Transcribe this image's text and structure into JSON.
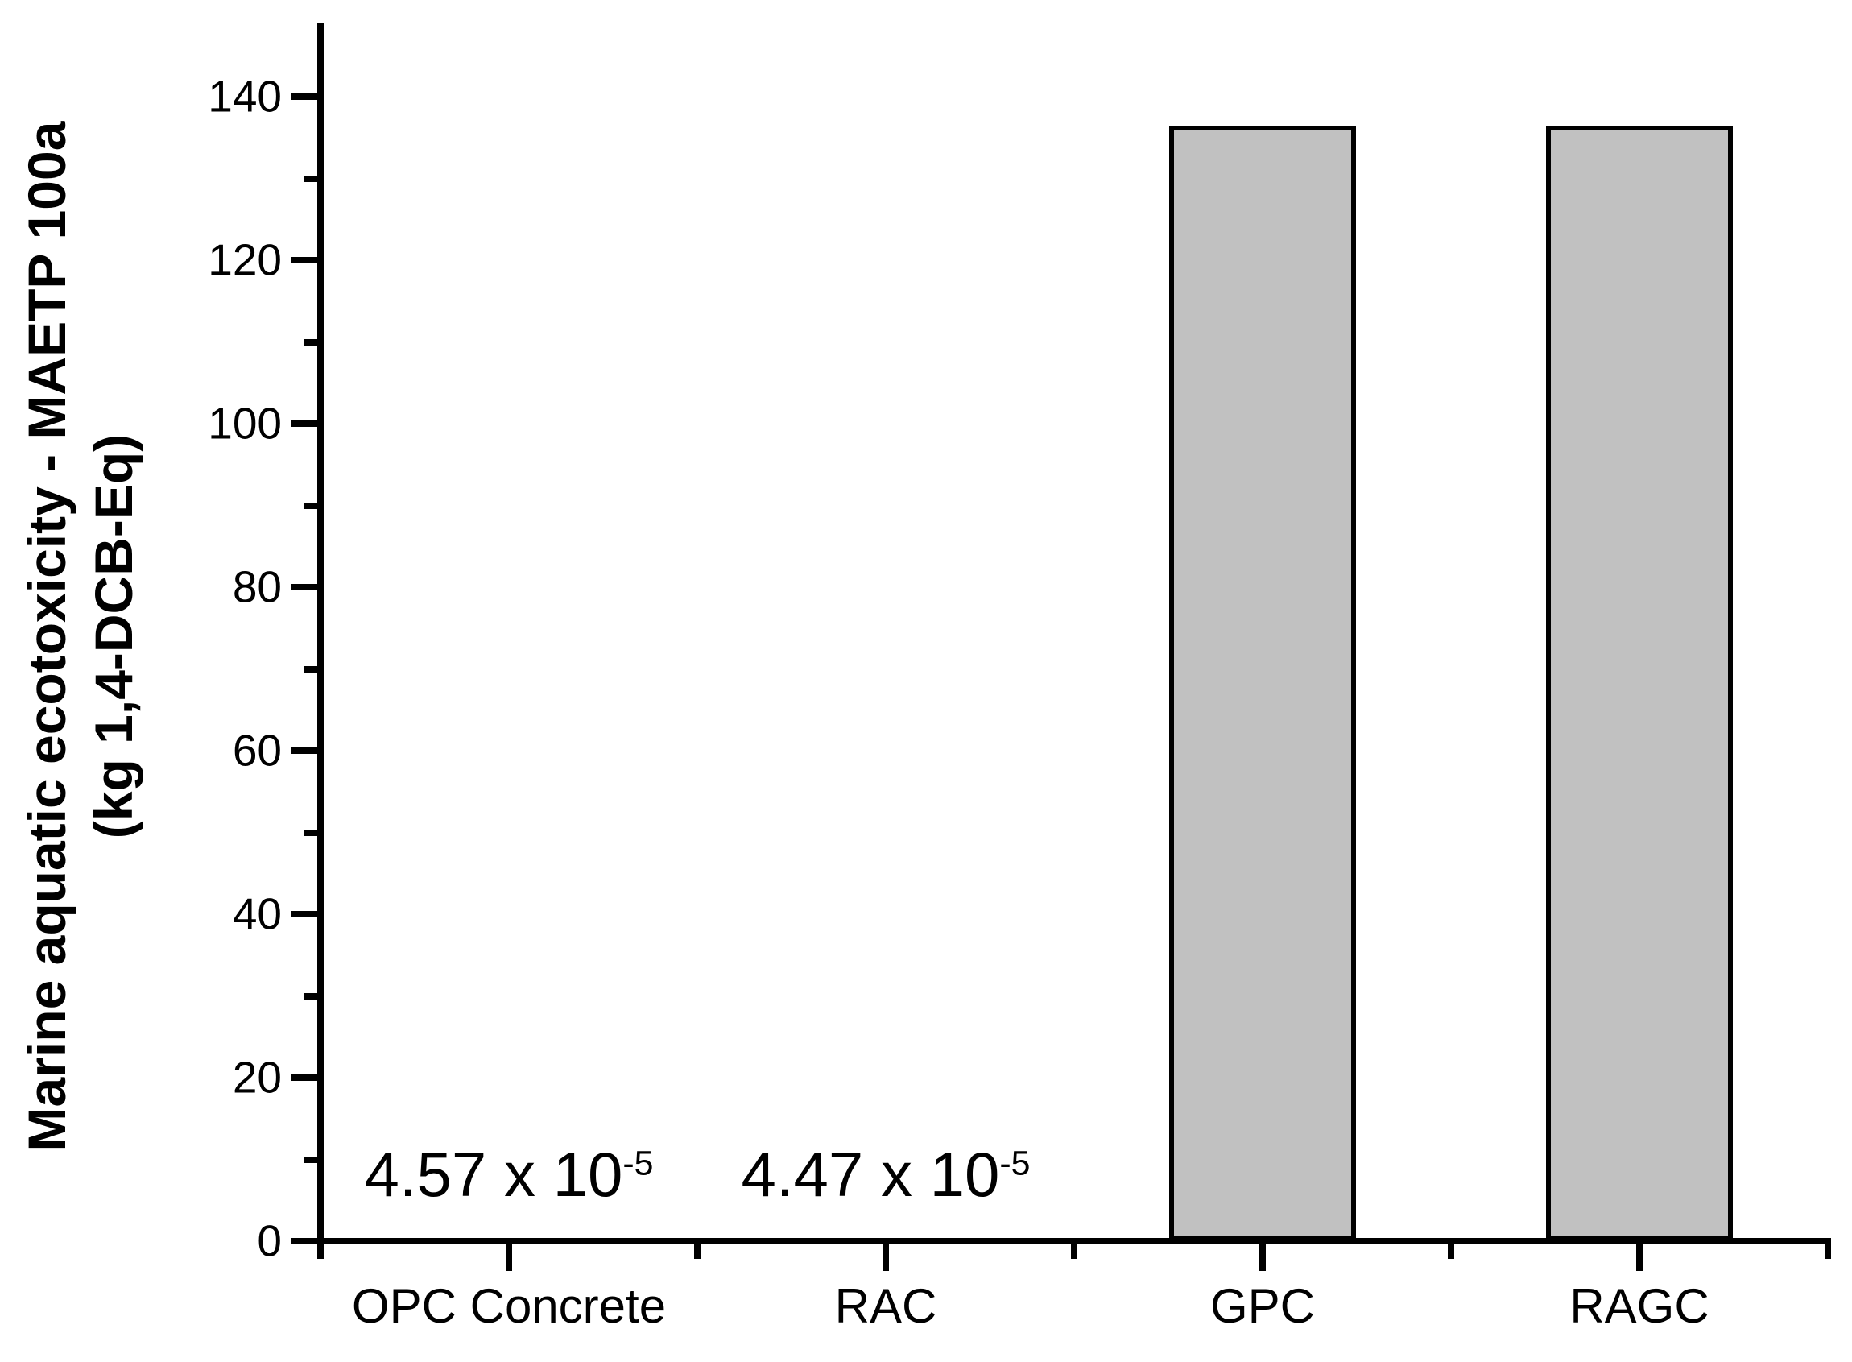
{
  "chart_data": {
    "type": "bar",
    "title": "",
    "categories": [
      "OPC Concrete",
      "RAC",
      "GPC",
      "RAGC"
    ],
    "values": [
      4.57e-05,
      4.47e-05,
      136.5,
      136.5
    ],
    "value_labels": [
      {
        "category_index": 0,
        "mantissa": "4.57 x 10",
        "exponent": "-5"
      },
      {
        "category_index": 1,
        "mantissa": "4.47 x 10",
        "exponent": "-5"
      }
    ],
    "ylabel_line1": "Marine aquatic ecotoxicity - MAETP 100a",
    "ylabel_line2": "(kg 1,4-DCB-Eq)",
    "xlabel": "",
    "ylim": [
      0,
      149
    ],
    "yticks_major": [
      0,
      20,
      40,
      60,
      80,
      100,
      120,
      140
    ],
    "yticks_minor": [
      10,
      30,
      50,
      70,
      90,
      110,
      130
    ],
    "grid": false,
    "legend": false,
    "bar_fill_color": "#c1c1c1",
    "bar_border_color": "#000000",
    "axis_color": "#000000",
    "background_color": "#ffffff"
  }
}
